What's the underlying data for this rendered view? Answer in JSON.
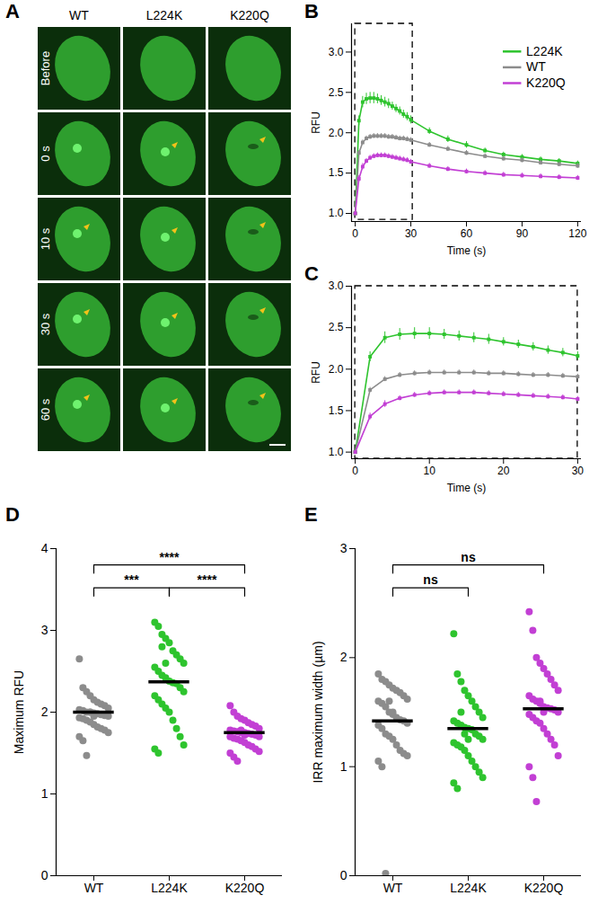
{
  "chart_data": [
    {
      "type": "image_grid",
      "panel_label": "A",
      "columns": [
        "WT",
        "L224K",
        "K220Q"
      ],
      "rows": [
        "Before",
        "0 s",
        "10 s",
        "30 s",
        "60 s"
      ]
    },
    {
      "type": "line",
      "panel_label": "B",
      "x_label": "Time (s)",
      "y_label": "RFU",
      "marker": "square",
      "legend": "top-right",
      "x": [
        0,
        2,
        4,
        6,
        8,
        10,
        12,
        14,
        16,
        18,
        20,
        22,
        24,
        26,
        28,
        30,
        40,
        50,
        60,
        70,
        80,
        90,
        100,
        110,
        120
      ],
      "xlim": [
        -2,
        122
      ],
      "xticks": [
        0,
        30,
        60,
        90,
        120
      ],
      "ylim": [
        0.9,
        3.35
      ],
      "yticks": [
        {
          "value": 1,
          "label": "1.0"
        },
        {
          "value": 1.5,
          "label": "1.5"
        },
        {
          "value": 2,
          "label": "2.0"
        },
        {
          "value": 2.5,
          "label": "2.5"
        },
        {
          "value": 3,
          "label": "3.0"
        }
      ],
      "zoom_box": {
        "x": [
          0,
          31
        ],
        "y": [
          0.92,
          3.35
        ]
      },
      "series": [
        {
          "name": "L224K",
          "color": "#2ec42e",
          "values": [
            1.0,
            2.15,
            2.38,
            2.42,
            2.43,
            2.43,
            2.42,
            2.4,
            2.38,
            2.36,
            2.33,
            2.3,
            2.27,
            2.23,
            2.2,
            2.16,
            2.02,
            1.92,
            1.85,
            1.78,
            1.73,
            1.7,
            1.67,
            1.65,
            1.62
          ],
          "errors": [
            0,
            0.06,
            0.07,
            0.07,
            0.07,
            0.07,
            0.06,
            0.06,
            0.06,
            0.06,
            0.05,
            0.05,
            0.05,
            0.05,
            0.05,
            0.05,
            0.04,
            0.04,
            0.04,
            0.03,
            0.03,
            0.03,
            0.03,
            0.03,
            0.03
          ]
        },
        {
          "name": "WT",
          "color": "#8c8c8c",
          "values": [
            1.0,
            1.75,
            1.88,
            1.93,
            1.95,
            1.96,
            1.96,
            1.96,
            1.96,
            1.95,
            1.95,
            1.94,
            1.93,
            1.93,
            1.92,
            1.91,
            1.85,
            1.8,
            1.75,
            1.71,
            1.68,
            1.66,
            1.63,
            1.61,
            1.59
          ],
          "errors": [
            0,
            0.03,
            0.03,
            0.03,
            0.03,
            0.03,
            0.03,
            0.03,
            0.03,
            0.03,
            0.03,
            0.03,
            0.03,
            0.03,
            0.03,
            0.03,
            0.03,
            0.03,
            0.03,
            0.03,
            0.03,
            0.03,
            0.03,
            0.03,
            0.03
          ]
        },
        {
          "name": "K220Q",
          "color": "#c23fd4",
          "values": [
            1.0,
            1.43,
            1.58,
            1.65,
            1.69,
            1.71,
            1.72,
            1.72,
            1.72,
            1.71,
            1.7,
            1.69,
            1.68,
            1.67,
            1.66,
            1.64,
            1.59,
            1.55,
            1.52,
            1.5,
            1.48,
            1.47,
            1.46,
            1.45,
            1.44
          ],
          "errors": [
            0,
            0.04,
            0.04,
            0.03,
            0.03,
            0.03,
            0.03,
            0.03,
            0.03,
            0.03,
            0.03,
            0.03,
            0.03,
            0.03,
            0.03,
            0.03,
            0.03,
            0.03,
            0.03,
            0.03,
            0.03,
            0.03,
            0.03,
            0.03,
            0.03
          ]
        }
      ]
    },
    {
      "type": "line",
      "panel_label": "C",
      "x_label": "Time (s)",
      "y_label": "RFU",
      "marker": "square",
      "x": [
        0,
        2,
        4,
        6,
        8,
        10,
        12,
        14,
        16,
        18,
        20,
        22,
        24,
        26,
        28,
        30
      ],
      "xlim": [
        -0.5,
        30.5
      ],
      "xticks": [
        0,
        10,
        20,
        30
      ],
      "ylim": [
        0.92,
        3.0
      ],
      "yticks": [
        {
          "value": 1,
          "label": "1.0"
        },
        {
          "value": 1.5,
          "label": "1.5"
        },
        {
          "value": 2,
          "label": "2.0"
        },
        {
          "value": 2.5,
          "label": "2.5"
        },
        {
          "value": 3,
          "label": "3.0"
        }
      ],
      "zoom_box": {
        "x": [
          0,
          30
        ],
        "y": [
          0.92,
          3.0
        ]
      },
      "series": [
        {
          "name": "L224K",
          "color": "#2ec42e",
          "values": [
            1.0,
            2.15,
            2.38,
            2.42,
            2.43,
            2.43,
            2.42,
            2.4,
            2.38,
            2.36,
            2.33,
            2.3,
            2.27,
            2.23,
            2.2,
            2.16
          ],
          "errors": [
            0,
            0.06,
            0.07,
            0.07,
            0.07,
            0.07,
            0.06,
            0.06,
            0.06,
            0.06,
            0.05,
            0.05,
            0.05,
            0.05,
            0.05,
            0.05
          ]
        },
        {
          "name": "WT",
          "color": "#8c8c8c",
          "values": [
            1.0,
            1.75,
            1.88,
            1.93,
            1.95,
            1.96,
            1.96,
            1.96,
            1.96,
            1.95,
            1.95,
            1.94,
            1.93,
            1.93,
            1.92,
            1.91
          ],
          "errors": [
            0,
            0.03,
            0.03,
            0.03,
            0.03,
            0.03,
            0.03,
            0.03,
            0.03,
            0.03,
            0.03,
            0.03,
            0.03,
            0.03,
            0.03,
            0.03
          ]
        },
        {
          "name": "K220Q",
          "color": "#c23fd4",
          "values": [
            1.0,
            1.43,
            1.58,
            1.65,
            1.69,
            1.71,
            1.72,
            1.72,
            1.72,
            1.71,
            1.7,
            1.69,
            1.68,
            1.67,
            1.66,
            1.64
          ],
          "errors": [
            0,
            0.04,
            0.04,
            0.03,
            0.03,
            0.03,
            0.03,
            0.03,
            0.03,
            0.03,
            0.03,
            0.03,
            0.03,
            0.03,
            0.03,
            0.03
          ]
        }
      ]
    },
    {
      "type": "scatter",
      "panel_label": "D",
      "y_label": "Maximum RFU",
      "categories": [
        "WT",
        "L224K",
        "K220Q"
      ],
      "colors": [
        "#8c8c8c",
        "#2ec42e",
        "#c23fd4"
      ],
      "ylim": [
        0,
        4
      ],
      "yticks": [
        0,
        1,
        2,
        3,
        4
      ],
      "values": [
        [
          2.65,
          2.3,
          2.25,
          2.2,
          2.15,
          2.12,
          2.1,
          2.08,
          2.05,
          2.03,
          2.02,
          2.0,
          2.0,
          1.99,
          1.98,
          1.97,
          1.96,
          1.95,
          1.93,
          1.92,
          1.9,
          1.88,
          1.85,
          1.82,
          1.8,
          1.78,
          1.75,
          1.7,
          1.65,
          1.47,
          2.0,
          1.95
        ],
        [
          3.1,
          3.05,
          2.95,
          2.9,
          2.85,
          2.75,
          2.7,
          2.65,
          2.6,
          2.55,
          2.5,
          2.45,
          2.42,
          2.38,
          2.36,
          2.35,
          2.3,
          2.25,
          2.2,
          2.15,
          2.1,
          2.05,
          2.0,
          1.9,
          1.8,
          1.7,
          1.6,
          1.55,
          1.5,
          2.8,
          2.6
        ],
        [
          2.08,
          2.0,
          1.95,
          1.92,
          1.9,
          1.87,
          1.85,
          1.83,
          1.8,
          1.78,
          1.77,
          1.76,
          1.75,
          1.75,
          1.74,
          1.73,
          1.72,
          1.7,
          1.7,
          1.68,
          1.67,
          1.65,
          1.63,
          1.6,
          1.58,
          1.55,
          1.52,
          1.5,
          1.45,
          1.4,
          1.78,
          1.72
        ]
      ],
      "medians": [
        2.0,
        2.37,
        1.75
      ],
      "comparisons": [
        {
          "groups": [
            "WT",
            "L224K"
          ],
          "label": "***"
        },
        {
          "groups": [
            "WT",
            "K220Q"
          ],
          "label": "****"
        },
        {
          "groups": [
            "L224K",
            "K220Q"
          ],
          "label": "****"
        }
      ]
    },
    {
      "type": "scatter",
      "panel_label": "E",
      "y_label": "IRR maximum width (µm)",
      "categories": [
        "WT",
        "L224K",
        "K220Q"
      ],
      "colors": [
        "#8c8c8c",
        "#2ec42e",
        "#c23fd4"
      ],
      "ylim": [
        0,
        3
      ],
      "yticks": [
        0,
        1,
        2,
        3
      ],
      "values": [
        [
          1.85,
          1.8,
          1.78,
          1.75,
          1.72,
          1.7,
          1.68,
          1.65,
          1.62,
          1.6,
          1.58,
          1.55,
          1.5,
          1.48,
          1.45,
          1.43,
          1.42,
          1.4,
          1.38,
          1.35,
          1.3,
          1.28,
          1.25,
          1.2,
          1.15,
          1.12,
          1.1,
          1.05,
          1.0,
          0.02,
          1.6,
          1.5
        ],
        [
          2.22,
          1.85,
          1.78,
          1.7,
          1.65,
          1.6,
          1.55,
          1.5,
          1.45,
          1.42,
          1.4,
          1.38,
          1.36,
          1.35,
          1.34,
          1.3,
          1.28,
          1.25,
          1.22,
          1.2,
          1.18,
          1.15,
          1.1,
          1.05,
          1.0,
          0.95,
          0.9,
          0.85,
          0.8,
          1.5,
          1.3,
          1.25
        ],
        [
          2.42,
          2.25,
          2.0,
          1.95,
          1.9,
          1.85,
          1.8,
          1.75,
          1.7,
          1.65,
          1.62,
          1.6,
          1.58,
          1.55,
          1.54,
          1.53,
          1.52,
          1.5,
          1.48,
          1.45,
          1.42,
          1.4,
          1.35,
          1.3,
          1.25,
          1.2,
          1.1,
          1.0,
          0.9,
          0.68,
          1.6,
          1.5
        ]
      ],
      "medians": [
        1.42,
        1.35,
        1.53
      ],
      "comparisons": [
        {
          "groups": [
            "WT",
            "L224K"
          ],
          "label": "ns"
        },
        {
          "groups": [
            "WT",
            "K220Q"
          ],
          "label": "ns"
        }
      ]
    }
  ]
}
